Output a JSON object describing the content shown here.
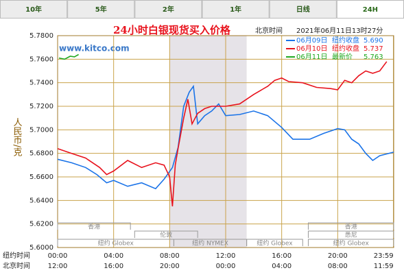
{
  "tabs": [
    "10年",
    "5年",
    "2年",
    "1年",
    "日线",
    "24H"
  ],
  "active_tab": 5,
  "chart_data": {
    "type": "line",
    "title": "24小时白银现货买入价格",
    "time_label": "北京时间",
    "timestamp": "2021年06月11日13时27分",
    "watermark": "www.kitco.com",
    "y_label": "人民币/克",
    "xlim": [
      0,
      24
    ],
    "xticks": [
      {
        "value": 0,
        "label": "00:00"
      },
      {
        "value": 4,
        "label": "04:00"
      },
      {
        "value": 8,
        "label": "08:00"
      },
      {
        "value": 12,
        "label": "12:00"
      },
      {
        "value": 16,
        "label": "16:00"
      },
      {
        "value": 20,
        "label": "20:00"
      },
      {
        "value": 23.98,
        "label": "23:59"
      }
    ],
    "x_row_label": "纽约时间",
    "x2_row_label": "北京时间",
    "x2_tick_labels": [
      "12:00",
      "16:00",
      "20:00",
      "00:00",
      "04:00",
      "08:00",
      "11:59"
    ],
    "ylim": [
      5.6,
      5.78
    ],
    "yticks": [
      {
        "value": 5.6,
        "label": "5.6000"
      },
      {
        "value": 5.62,
        "label": "5.6200"
      },
      {
        "value": 5.64,
        "label": "5.6400"
      },
      {
        "value": 5.66,
        "label": "5.6600"
      },
      {
        "value": 5.68,
        "label": "5.6800"
      },
      {
        "value": 5.7,
        "label": "5.7000"
      },
      {
        "value": 5.72,
        "label": "5.7200"
      },
      {
        "value": 5.74,
        "label": "5.7400"
      },
      {
        "value": 5.76,
        "label": "5.7600"
      },
      {
        "value": 5.78,
        "label": "5.7800"
      }
    ],
    "grid": true,
    "shaded": [
      8,
      13.5
    ],
    "sessions": [
      {
        "name": "香港",
        "start": 0,
        "end": 5.2,
        "row": 0
      },
      {
        "name": "伦敦",
        "start": 5.5,
        "end": 10,
        "row": 1
      },
      {
        "name": "纽约 Globex",
        "start": 0,
        "end": 8.3,
        "row": 2
      },
      {
        "name": "纽约 NYMEX",
        "start": 8.3,
        "end": 13.5,
        "row": 2
      },
      {
        "name": "纽约 Globex",
        "start": 13.5,
        "end": 17.5,
        "row": 2
      },
      {
        "name": "香港",
        "start": 17.9,
        "end": 24,
        "row": 0
      },
      {
        "name": "悉尼",
        "start": 17.9,
        "end": 24,
        "row": 1
      },
      {
        "name": "纽约 Globex",
        "start": 17.9,
        "end": 24,
        "row": 2
      }
    ],
    "series": [
      {
        "name": "06月09日",
        "note": "纽约收盘",
        "close": "5.690",
        "color": "#1a73e8",
        "x": [
          0,
          1,
          2,
          2.8,
          3.5,
          4,
          5,
          6,
          7,
          7.6,
          8.2,
          8.6,
          9,
          9.4,
          9.7,
          10,
          10.5,
          11,
          11.5,
          12,
          13,
          14,
          15,
          16,
          16.8,
          18,
          19,
          20,
          20.5,
          21,
          21.5,
          22,
          22.5,
          23,
          24
        ],
        "values": [
          5.675,
          5.672,
          5.668,
          5.662,
          5.655,
          5.657,
          5.652,
          5.655,
          5.65,
          5.658,
          5.668,
          5.685,
          5.72,
          5.732,
          5.737,
          5.705,
          5.712,
          5.716,
          5.722,
          5.712,
          5.713,
          5.716,
          5.712,
          5.702,
          5.692,
          5.692,
          5.697,
          5.701,
          5.7,
          5.692,
          5.688,
          5.68,
          5.674,
          5.678,
          5.681
        ]
      },
      {
        "name": "06月10日",
        "note": "纽约收盘",
        "close": "5.737",
        "color": "#e8121c",
        "x": [
          0,
          1,
          2,
          3,
          3.5,
          4,
          5,
          6,
          7,
          7.6,
          8,
          8.2,
          8.4,
          8.6,
          9,
          9.3,
          9.6,
          10,
          10.5,
          11,
          12,
          13,
          14,
          15,
          15.5,
          16,
          16.5,
          17.5,
          18.5,
          19.5,
          20,
          20.5,
          21,
          21.5,
          22,
          22.5,
          23,
          23.5
        ],
        "values": [
          5.684,
          5.68,
          5.676,
          5.668,
          5.662,
          5.665,
          5.674,
          5.668,
          5.672,
          5.67,
          5.66,
          5.635,
          5.67,
          5.684,
          5.71,
          5.726,
          5.705,
          5.714,
          5.718,
          5.72,
          5.72,
          5.722,
          5.73,
          5.737,
          5.742,
          5.744,
          5.741,
          5.74,
          5.736,
          5.735,
          5.734,
          5.742,
          5.74,
          5.746,
          5.75,
          5.748,
          5.75,
          5.758
        ]
      },
      {
        "name": "06月11日",
        "note": "最新价",
        "close": "5.763",
        "color": "#1fa81f",
        "x": [
          0.1,
          0.5,
          0.9,
          1.2,
          1.5
        ],
        "values": [
          5.761,
          5.76,
          5.7625,
          5.762,
          5.764
        ]
      }
    ]
  }
}
